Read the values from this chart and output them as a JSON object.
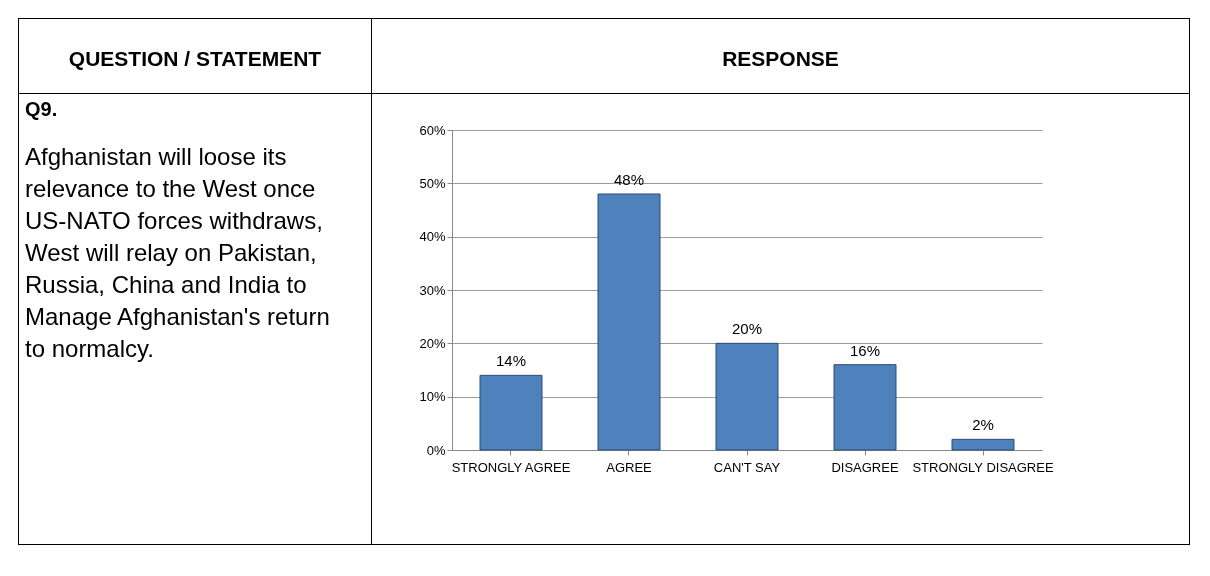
{
  "chart_data": {
    "type": "bar",
    "annotations": [
      "QUESTION / STATEMENT",
      "RESPONSE",
      "Q9.",
      "Afghanistan will loose its relevance to the West once US-NATO forces withdraws, West will relay on Pakistan, Russia, China and India to Manage Afghanistan's return to normalcy."
    ],
    "categories": [
      "STRONGLY AGREE",
      "AGREE",
      "CAN'T SAY",
      "DISAGREE",
      "STRONGLY DISAGREE"
    ],
    "values": [
      14,
      48,
      20,
      16,
      2
    ],
    "value_labels": [
      "14%",
      "48%",
      "20%",
      "16%",
      "2%"
    ],
    "color": "#4f81bd",
    "ylim": [
      0,
      60
    ],
    "yticks": [
      {
        "value": 0,
        "label": "0%"
      },
      {
        "value": 10,
        "label": "10%"
      },
      {
        "value": 20,
        "label": "20%"
      },
      {
        "value": 30,
        "label": "30%"
      },
      {
        "value": 40,
        "label": "40%"
      },
      {
        "value": 50,
        "label": "50%"
      },
      {
        "value": 60,
        "label": "60%"
      }
    ],
    "grid": "y"
  }
}
